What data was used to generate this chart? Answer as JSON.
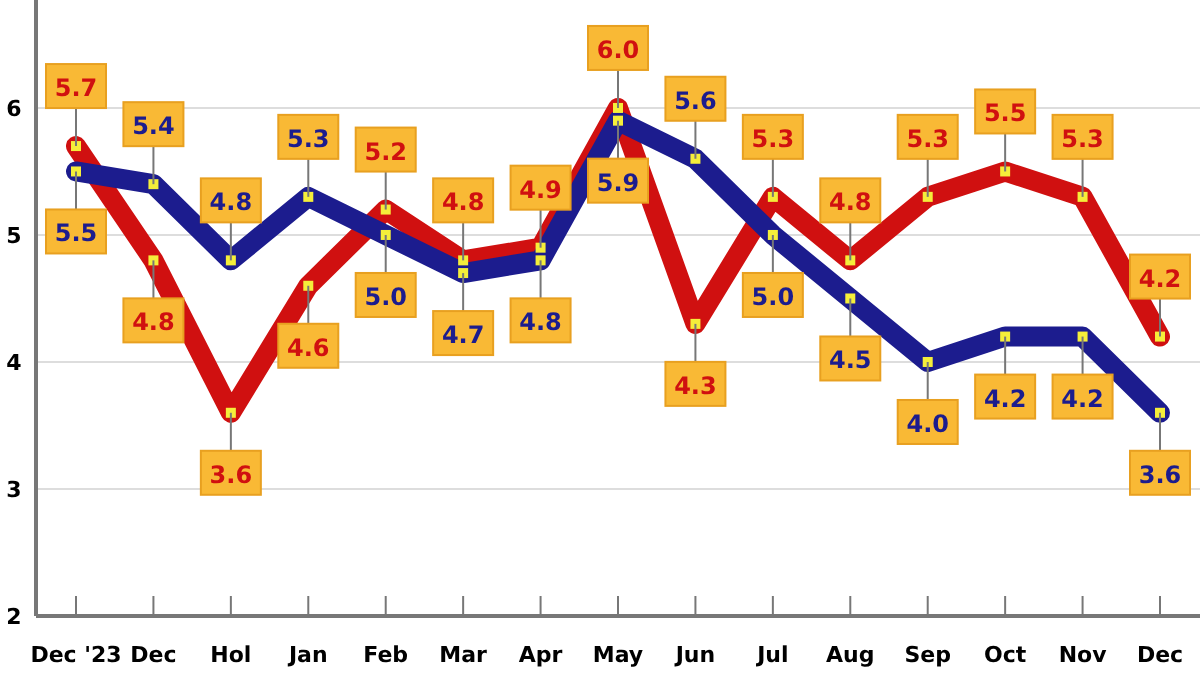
{
  "chart_data": {
    "type": "line",
    "categories": [
      "Dec '23",
      "Dec",
      "Hol",
      "Jan",
      "Feb",
      "Mar",
      "Apr",
      "May",
      "Jun",
      "Jul",
      "Aug",
      "Sep",
      "Oct",
      "Nov",
      "Dec"
    ],
    "series": [
      {
        "color": "#d01010",
        "values": [
          5.7,
          4.8,
          3.6,
          4.6,
          5.2,
          4.8,
          4.9,
          6,
          4.3,
          5.3,
          4.8,
          5.3,
          5.5,
          5.3,
          4.2
        ],
        "value_labels": [
          "5.7",
          "4.8",
          "3.6",
          "4.6",
          "5.2",
          "4.8",
          "4.9",
          "6.0",
          "4.3",
          "5.3",
          "4.8",
          "5.3",
          "5.5",
          "5.3",
          "4.2"
        ]
      },
      {
        "color": "#1c1c8e",
        "values": [
          5.5,
          5.4,
          4.8,
          5.3,
          5,
          4.7,
          4.8,
          5.9,
          5.6,
          5,
          4.5,
          4,
          4.2,
          4.2,
          3.6
        ],
        "value_labels": [
          "5.5",
          "5.4",
          "4.8",
          "5.3",
          "5.0",
          "4.7",
          "4.8",
          "5.9",
          "5.6",
          "5.0",
          "4.5",
          "4.0",
          "4.2",
          "4.2",
          "3.6"
        ]
      }
    ],
    "ylim": [
      2,
      6.85
    ],
    "yticks": [
      2,
      3,
      4,
      5,
      6
    ],
    "grid": "y",
    "marker": "square"
  }
}
